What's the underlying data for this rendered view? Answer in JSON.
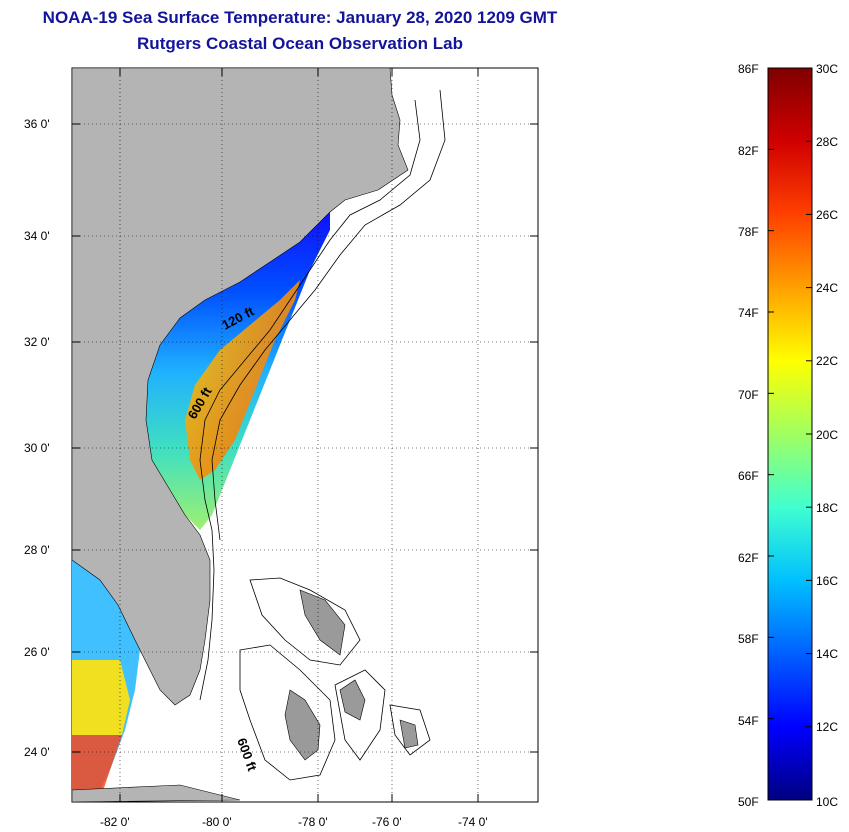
{
  "title_line1": "NOAA-19 Sea Surface Temperature:  January 28, 2020 1209 GMT",
  "title_line2": "Rutgers Coastal Ocean Observation Lab",
  "map": {
    "x_ticks": [
      "-82 0'",
      "-80 0'",
      "-78 0'",
      "-76 0'",
      "-74 0'"
    ],
    "y_ticks": [
      "36 0'",
      "34 0'",
      "32 0'",
      "30 0'",
      "28 0'",
      "26 0'",
      "24 0'"
    ],
    "contour_labels": [
      "120 ft",
      "600 ft",
      "600 ft"
    ],
    "colors": {
      "land": "#b4b4b4",
      "ocean_nodata": "#ffffff",
      "grid": "#000000"
    }
  },
  "colorbar": {
    "fahrenheit": [
      "86F",
      "82F",
      "78F",
      "74F",
      "70F",
      "66F",
      "62F",
      "58F",
      "54F",
      "50F"
    ],
    "celsius": [
      "30C",
      "28C",
      "26C",
      "24C",
      "22C",
      "20C",
      "18C",
      "16C",
      "14C",
      "12C",
      "10C"
    ],
    "gradient": [
      "#000080",
      "#0000ff",
      "#0060ff",
      "#00c0ff",
      "#40ffd0",
      "#a0ff60",
      "#ffff00",
      "#ffa000",
      "#ff4000",
      "#d00000",
      "#800000"
    ]
  }
}
